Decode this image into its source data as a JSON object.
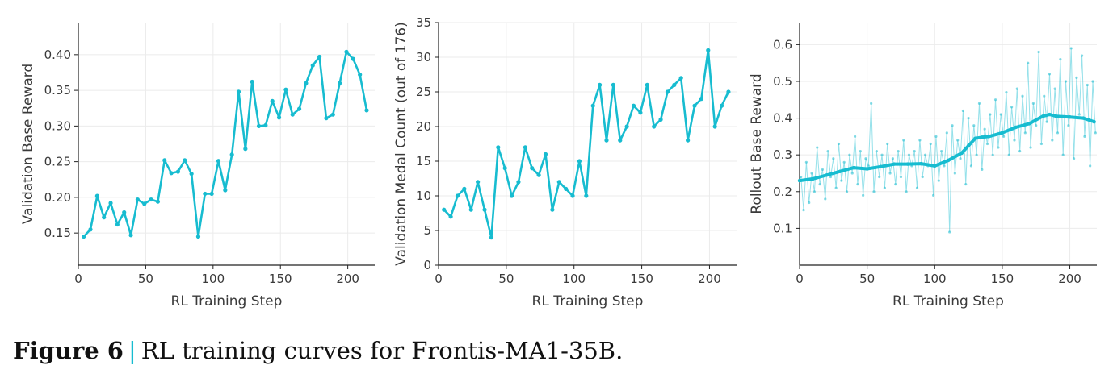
{
  "caption": {
    "label": "Figure 6",
    "separator": "|",
    "text": "RL training curves for Frontis-MA1-35B."
  },
  "colors": {
    "series": "#17bcd0",
    "axis": "#222222",
    "grid": "#ebebeb",
    "text": "#3a3a3a"
  },
  "chart_data": [
    {
      "type": "line",
      "xlabel": "RL Training Step",
      "ylabel": "Validation Base Reward",
      "xlim": [
        0,
        220
      ],
      "ylim": [
        0.105,
        0.445
      ],
      "xticks": [
        0,
        50,
        100,
        150,
        200
      ],
      "yticks": [
        0.15,
        0.2,
        0.25,
        0.3,
        0.35,
        0.4
      ],
      "ytick_labels": [
        "0.15",
        "0.20",
        "0.25",
        "0.30",
        "0.35",
        "0.40"
      ],
      "grid": true,
      "series": [
        {
          "x": [
            4,
            9,
            14,
            19,
            24,
            29,
            34,
            39,
            44,
            49,
            54,
            59,
            64,
            69,
            74,
            79,
            84,
            89,
            94,
            99,
            104,
            109,
            114,
            119,
            124,
            129,
            134,
            139,
            144,
            149,
            154,
            159,
            164,
            169,
            174,
            179,
            184,
            189,
            194,
            199,
            204,
            209,
            214
          ],
          "y": [
            0.145,
            0.155,
            0.202,
            0.172,
            0.192,
            0.162,
            0.179,
            0.147,
            0.197,
            0.191,
            0.197,
            0.194,
            0.252,
            0.234,
            0.236,
            0.252,
            0.233,
            0.145,
            0.205,
            0.205,
            0.251,
            0.21,
            0.26,
            0.348,
            0.268,
            0.362,
            0.3,
            0.301,
            0.335,
            0.312,
            0.351,
            0.316,
            0.324,
            0.36,
            0.385,
            0.397,
            0.311,
            0.316,
            0.36,
            0.404,
            0.394,
            0.372,
            0.322
          ]
        }
      ]
    },
    {
      "type": "line",
      "xlabel": "RL Training Step",
      "ylabel": "Validation Medal Count (out of 176)",
      "xlim": [
        0,
        220
      ],
      "ylim": [
        0,
        35
      ],
      "xticks": [
        0,
        50,
        100,
        150,
        200
      ],
      "yticks": [
        0,
        5,
        10,
        15,
        20,
        25,
        30,
        35
      ],
      "ytick_labels": [
        "0",
        "5",
        "10",
        "15",
        "20",
        "25",
        "30",
        "35"
      ],
      "grid": true,
      "series": [
        {
          "x": [
            4,
            9,
            14,
            19,
            24,
            29,
            34,
            39,
            44,
            49,
            54,
            59,
            64,
            69,
            74,
            79,
            84,
            89,
            94,
            99,
            104,
            109,
            114,
            119,
            124,
            129,
            134,
            139,
            144,
            149,
            154,
            159,
            164,
            169,
            174,
            179,
            184,
            189,
            194,
            199,
            204,
            209,
            214
          ],
          "y": [
            8,
            7,
            10,
            11,
            8,
            12,
            8,
            4,
            17,
            14,
            10,
            12,
            17,
            14,
            13,
            16,
            8,
            12,
            11,
            10,
            15,
            10,
            23,
            26,
            18,
            26,
            18,
            20,
            23,
            22,
            26,
            20,
            21,
            25,
            26,
            27,
            18,
            23,
            24,
            31,
            20,
            23,
            25
          ]
        }
      ]
    },
    {
      "type": "line",
      "xlabel": "RL Training Step",
      "ylabel": "Rollout Base Reward",
      "xlim": [
        0,
        220
      ],
      "ylim": [
        0,
        0.66
      ],
      "xticks": [
        0,
        50,
        100,
        150,
        200
      ],
      "yticks": [
        0.1,
        0.2,
        0.3,
        0.4,
        0.5,
        0.6
      ],
      "ytick_labels": [
        "0.1",
        "0.2",
        "0.3",
        "0.4",
        "0.5",
        "0.6"
      ],
      "grid": true,
      "series": [
        {
          "role": "raw",
          "x": [
            1,
            3,
            5,
            7,
            9,
            11,
            13,
            15,
            17,
            19,
            21,
            23,
            25,
            27,
            29,
            31,
            33,
            35,
            37,
            39,
            41,
            43,
            45,
            47,
            49,
            51,
            53,
            55,
            57,
            59,
            61,
            63,
            65,
            67,
            69,
            71,
            73,
            75,
            77,
            79,
            81,
            83,
            85,
            87,
            89,
            91,
            93,
            95,
            97,
            99,
            101,
            103,
            105,
            107,
            109,
            111,
            113,
            115,
            117,
            119,
            121,
            123,
            125,
            127,
            129,
            131,
            133,
            135,
            137,
            139,
            141,
            143,
            145,
            147,
            149,
            151,
            153,
            155,
            157,
            159,
            161,
            163,
            165,
            167,
            169,
            171,
            173,
            175,
            177,
            179,
            181,
            183,
            185,
            187,
            189,
            191,
            193,
            195,
            197,
            199,
            201,
            203,
            205,
            207,
            209,
            211,
            213,
            215,
            217,
            219
          ],
          "y": [
            0.24,
            0.15,
            0.28,
            0.17,
            0.25,
            0.2,
            0.32,
            0.22,
            0.26,
            0.18,
            0.31,
            0.24,
            0.29,
            0.21,
            0.33,
            0.23,
            0.28,
            0.2,
            0.3,
            0.25,
            0.35,
            0.22,
            0.31,
            0.19,
            0.29,
            0.27,
            0.44,
            0.2,
            0.31,
            0.24,
            0.3,
            0.21,
            0.33,
            0.25,
            0.29,
            0.22,
            0.31,
            0.24,
            0.34,
            0.2,
            0.3,
            0.27,
            0.31,
            0.21,
            0.34,
            0.24,
            0.3,
            0.27,
            0.33,
            0.19,
            0.35,
            0.23,
            0.31,
            0.27,
            0.36,
            0.09,
            0.38,
            0.25,
            0.34,
            0.29,
            0.42,
            0.22,
            0.4,
            0.27,
            0.38,
            0.3,
            0.44,
            0.26,
            0.37,
            0.33,
            0.41,
            0.3,
            0.45,
            0.32,
            0.41,
            0.35,
            0.47,
            0.3,
            0.43,
            0.34,
            0.48,
            0.31,
            0.46,
            0.36,
            0.55,
            0.32,
            0.44,
            0.38,
            0.58,
            0.33,
            0.46,
            0.39,
            0.52,
            0.34,
            0.48,
            0.36,
            0.56,
            0.3,
            0.5,
            0.38,
            0.59,
            0.29,
            0.51,
            0.41,
            0.57,
            0.35,
            0.49,
            0.27,
            0.5,
            0.36
          ]
        },
        {
          "role": "smoothed",
          "x": [
            0,
            10,
            20,
            30,
            40,
            50,
            60,
            70,
            80,
            90,
            100,
            110,
            120,
            125,
            130,
            135,
            140,
            150,
            160,
            170,
            180,
            185,
            190,
            200,
            210,
            218
          ],
          "y": [
            0.23,
            0.235,
            0.245,
            0.255,
            0.265,
            0.262,
            0.268,
            0.275,
            0.275,
            0.276,
            0.27,
            0.285,
            0.305,
            0.325,
            0.345,
            0.348,
            0.35,
            0.36,
            0.375,
            0.385,
            0.405,
            0.41,
            0.405,
            0.403,
            0.4,
            0.39
          ]
        }
      ]
    }
  ]
}
